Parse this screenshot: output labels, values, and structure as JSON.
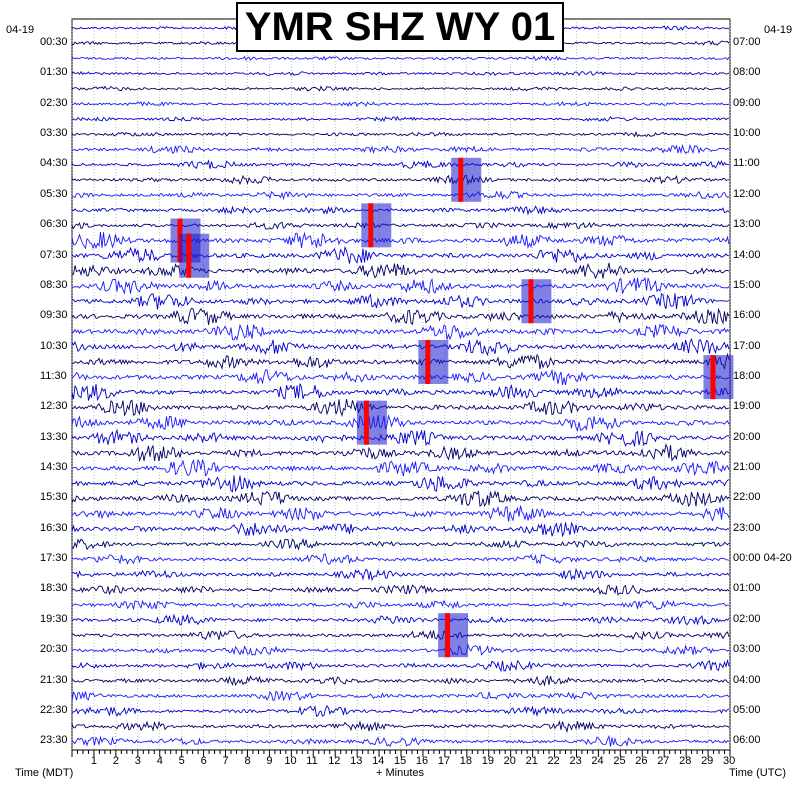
{
  "chart_data": {
    "type": "helicorder",
    "title": "YMR SHZ WY 01",
    "date_left": "04-19",
    "date_right": "04-19",
    "left_labels": [
      "00:30",
      "01:30",
      "02:30",
      "03:30",
      "04:30",
      "05:30",
      "06:30",
      "07:30",
      "08:30",
      "09:30",
      "10:30",
      "11:30",
      "12:30",
      "13:30",
      "14:30",
      "15:30",
      "16:30",
      "17:30",
      "18:30",
      "19:30",
      "20:30",
      "21:30",
      "22:30",
      "23:30"
    ],
    "right_labels": [
      "07:00",
      "08:00",
      "09:00",
      "10:00",
      "11:00",
      "12:00",
      "13:00",
      "14:00",
      "15:00",
      "16:00",
      "17:00",
      "18:00",
      "19:00",
      "20:00",
      "21:00",
      "22:00",
      "23:00",
      "00:00 04-20",
      "01:00",
      "02:00",
      "03:00",
      "04:00",
      "05:00",
      "06:00"
    ],
    "x_ticks": [
      "1",
      "2",
      "3",
      "4",
      "5",
      "6",
      "7",
      "8",
      "9",
      "10",
      "11",
      "12",
      "13",
      "14",
      "15",
      "16",
      "17",
      "18",
      "19",
      "20",
      "21",
      "22",
      "23",
      "24",
      "25",
      "26",
      "27",
      "28",
      "29",
      "30"
    ],
    "xlabel": "+ Minutes",
    "xlabel_left": "Time (MDT)",
    "xlabel_right": "Time (UTC)",
    "xlim": [
      0,
      30
    ],
    "trace_colors": [
      "#0000cc",
      "#000066",
      "#1a1aff"
    ],
    "clip_color": "#ff0000",
    "grid": true,
    "clipped_events": [
      {
        "row": 14,
        "minute": 4.9
      },
      {
        "row": 15,
        "minute": 5.3
      },
      {
        "row": 13,
        "minute": 13.6
      },
      {
        "row": 10,
        "minute": 17.7
      },
      {
        "row": 22,
        "minute": 16.2
      },
      {
        "row": 18,
        "minute": 20.9
      },
      {
        "row": 23,
        "minute": 29.2
      },
      {
        "row": 26,
        "minute": 13.4
      },
      {
        "row": 40,
        "minute": 17.1
      }
    ]
  }
}
